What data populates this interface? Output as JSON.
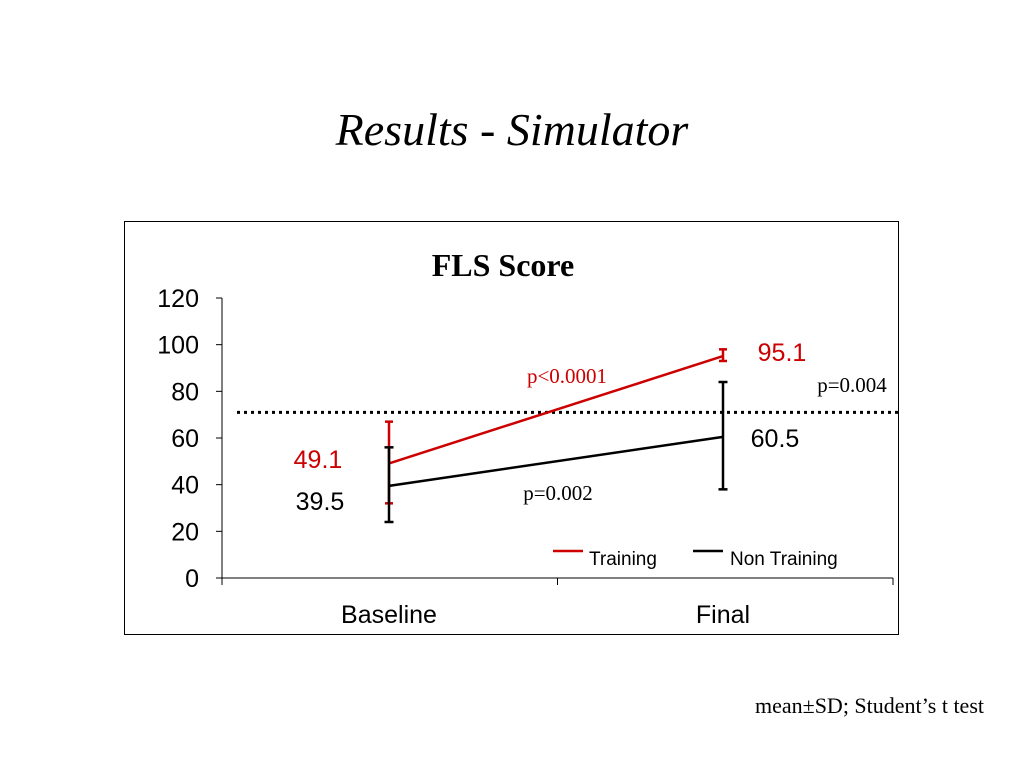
{
  "slide": {
    "title": "Results - Simulator",
    "footnote": "mean±SD; Student’s t test"
  },
  "chart_data": {
    "type": "line",
    "title": "FLS Score",
    "categories": [
      "Baseline",
      "Final"
    ],
    "ylim": [
      0,
      120
    ],
    "yticks": [
      0,
      20,
      40,
      60,
      80,
      100,
      120
    ],
    "grid": false,
    "legend_position": "bottom-right",
    "reference_line": {
      "y": 71,
      "style": "dotted"
    },
    "series": [
      {
        "name": "Training",
        "color": "#cc0000",
        "values": [
          49.1,
          95.1
        ],
        "error_low": [
          32,
          93
        ],
        "error_high": [
          67,
          98
        ],
        "value_labels": [
          "49.1",
          "95.1"
        ]
      },
      {
        "name": "Non Training",
        "color": "#000000",
        "values": [
          39.5,
          60.5
        ],
        "error_low": [
          24,
          38
        ],
        "error_high": [
          56,
          84
        ],
        "value_labels": [
          "39.5",
          "60.5"
        ]
      }
    ],
    "annotations": [
      {
        "text": "p<0.0001",
        "color": "#cc0000",
        "anchor": "training-line"
      },
      {
        "text": "p=0.002",
        "color": "#000000",
        "anchor": "non-training-line"
      },
      {
        "text": "p=0.004",
        "color": "#000000",
        "anchor": "final-comparison"
      }
    ],
    "colors": {
      "axis": "#000000",
      "training": "#cc0000",
      "non_training": "#000000"
    }
  }
}
